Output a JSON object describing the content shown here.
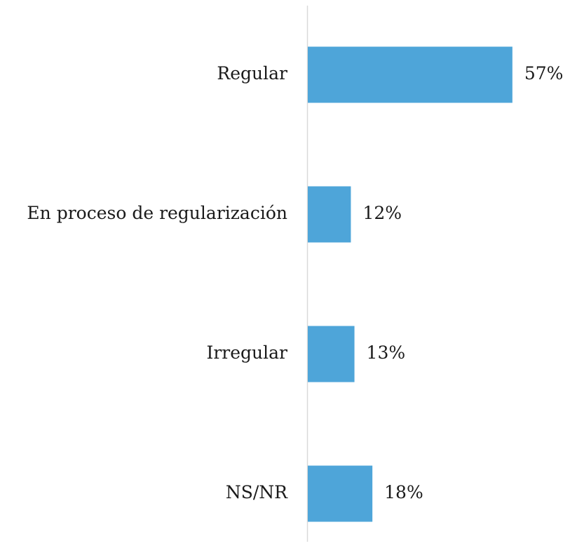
{
  "chart_data": {
    "type": "barh",
    "categories": [
      "Regular",
      "En proceso de regularización",
      "Irregular",
      "NS/NR"
    ],
    "values": [
      57,
      12,
      13,
      18
    ],
    "value_labels": [
      "57%",
      "12%",
      "13%",
      "18%"
    ],
    "color": "#4ea5d9"
  }
}
